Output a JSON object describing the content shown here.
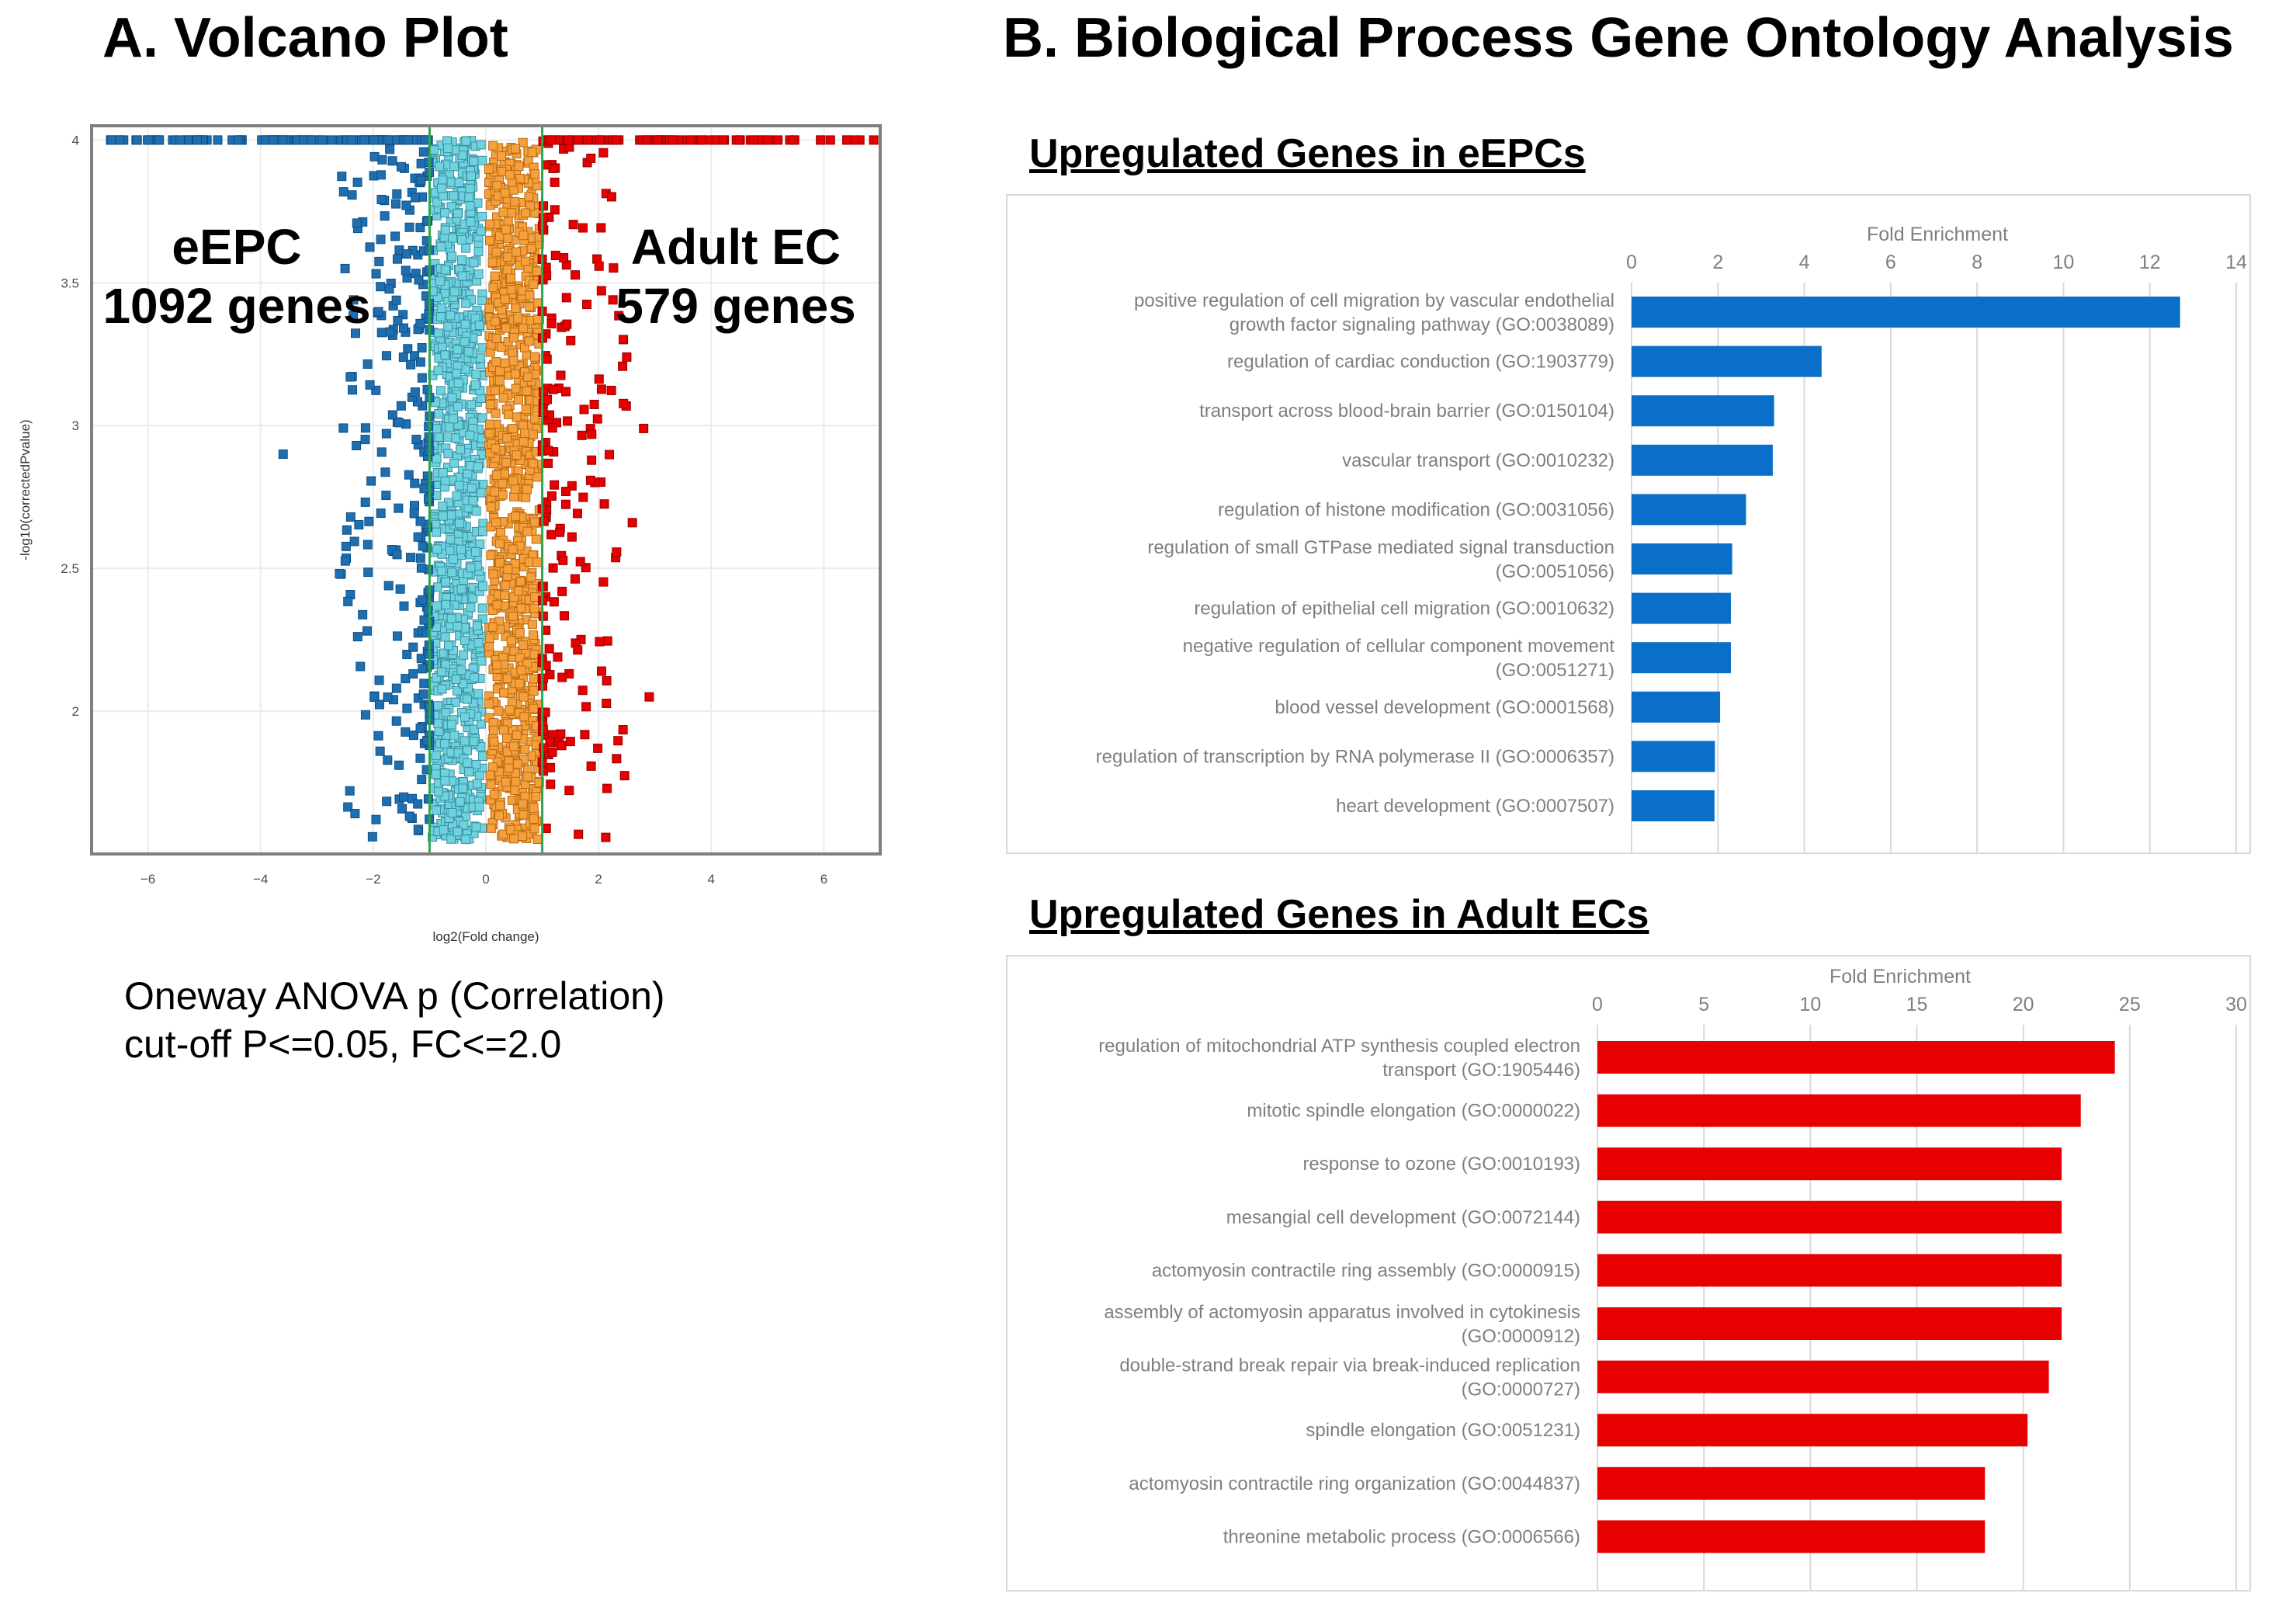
{
  "panel_a": {
    "title": "A. Volcano Plot",
    "note_line1": "Oneway ANOVA p (Correlation)",
    "note_line2": "cut-off P<=0.05, FC<=2.0"
  },
  "panel_b": {
    "title": "B. Biological Process Gene Ontology Analysis",
    "subtitle_epc": "Upregulated Genes in eEPCs",
    "subtitle_ec": "Upregulated Genes in Adult ECs"
  },
  "colors": {
    "down_sig": "#1f6fb0",
    "down_ns": "#6fd3df",
    "up_ns": "#f5a03c",
    "up_sig": "#e60000",
    "threshold": "#2ea44f",
    "bar_epc": "#0a6fc9",
    "bar_ec": "#e60000"
  },
  "chart_data": [
    {
      "type": "scatter",
      "name": "volcano",
      "xlabel": "log2(Fold change)",
      "ylabel": "-log10(correctedPvalue)",
      "xlim": [
        -7,
        7
      ],
      "ylim": [
        1.5,
        4.05
      ],
      "xticks": [
        -6,
        -4,
        -2,
        0,
        2,
        4,
        6
      ],
      "yticks": [
        2,
        2.5,
        3,
        3.5,
        4
      ],
      "thresholds_x": [
        -1,
        1
      ],
      "annotations": [
        {
          "line1": "eEPC",
          "line2": "1092 genes",
          "side": "left"
        },
        {
          "line1": "Adult EC",
          "line2": "579 genes",
          "side": "right"
        }
      ],
      "series": [
        {
          "name": "downregulated significant",
          "x_range": [
            -6.7,
            -1.0
          ],
          "count": 1092
        },
        {
          "name": "not significant (negative)",
          "x_range": [
            -1.0,
            0.0
          ]
        },
        {
          "name": "not significant (positive)",
          "x_range": [
            0.0,
            1.0
          ]
        },
        {
          "name": "upregulated significant",
          "x_range": [
            1.0,
            6.9
          ],
          "count": 579
        }
      ]
    },
    {
      "type": "bar",
      "name": "epc-go",
      "orientation": "horizontal",
      "title": "Fold  Enrichment",
      "xlim": [
        0,
        14
      ],
      "xticks": [
        0,
        2,
        4,
        6,
        8,
        10,
        12,
        14
      ],
      "categories": [
        [
          "positive regulation of cell migration by vascular endothelial",
          "growth factor signaling pathway (GO:0038089)"
        ],
        [
          "regulation of cardiac conduction (GO:1903779)"
        ],
        [
          "transport across blood-brain barrier (GO:0150104)"
        ],
        [
          "vascular transport (GO:0010232)"
        ],
        [
          "regulation of histone modification (GO:0031056)"
        ],
        [
          "regulation of small GTPase mediated signal transduction",
          "(GO:0051056)"
        ],
        [
          "regulation of epithelial cell migration (GO:0010632)"
        ],
        [
          "negative regulation of cellular component movement",
          "(GO:0051271)"
        ],
        [
          "blood vessel development (GO:0001568)"
        ],
        [
          "regulation of transcription by RNA polymerase II (GO:0006357)"
        ],
        [
          "heart development (GO:0007507)"
        ]
      ],
      "values": [
        12.7,
        4.4,
        3.3,
        3.27,
        2.65,
        2.33,
        2.3,
        2.3,
        2.05,
        1.93,
        1.92
      ]
    },
    {
      "type": "bar",
      "name": "ec-go",
      "orientation": "horizontal",
      "title": "Fold  Enrichment",
      "xlim": [
        0,
        30
      ],
      "xticks": [
        0,
        5,
        10,
        15,
        20,
        25,
        30
      ],
      "categories": [
        [
          "regulation of mitochondrial ATP synthesis coupled electron",
          "transport (GO:1905446)"
        ],
        [
          "mitotic spindle elongation (GO:0000022)"
        ],
        [
          "response to ozone (GO:0010193)"
        ],
        [
          "mesangial cell development (GO:0072144)"
        ],
        [
          "actomyosin contractile ring assembly (GO:0000915)"
        ],
        [
          "assembly of actomyosin apparatus involved in cytokinesis",
          "(GO:0000912)"
        ],
        [
          "double-strand break repair via break-induced replication",
          "(GO:0000727)"
        ],
        [
          "spindle elongation (GO:0051231)"
        ],
        [
          "actomyosin contractile ring organization (GO:0044837)"
        ],
        [
          "threonine metabolic process (GO:0006566)"
        ]
      ],
      "values": [
        24.3,
        22.7,
        21.8,
        21.8,
        21.8,
        21.8,
        21.2,
        20.2,
        18.2,
        18.2
      ]
    }
  ]
}
